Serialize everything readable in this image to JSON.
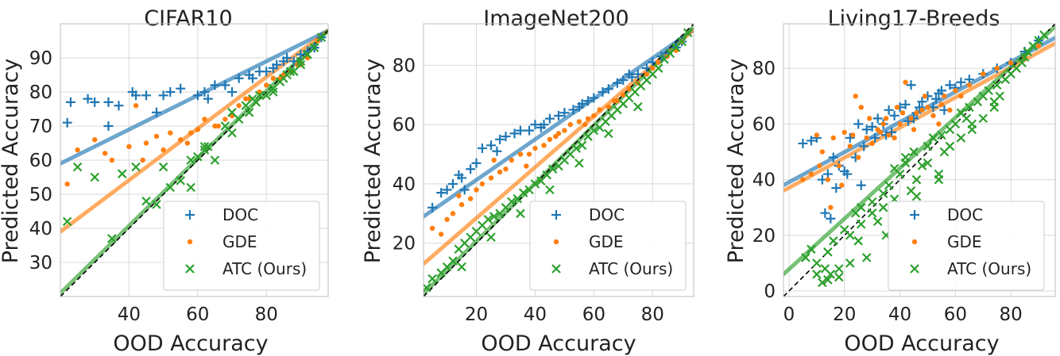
{
  "colors": {
    "DOC": "#1f77b4",
    "GDE": "#ff7f0e",
    "ATC (Ours)": "#2ca02c",
    "diagonal": "#000000"
  },
  "chart_data": [
    {
      "type": "scatter",
      "title": "CIFAR10",
      "xlabel": "OOD Accuracy",
      "ylabel": "Predicted Accuracy",
      "xlim": [
        20,
        98
      ],
      "ylim": [
        20,
        100
      ],
      "xticks": [
        40,
        60,
        80
      ],
      "yticks": [
        30,
        40,
        50,
        60,
        70,
        80,
        90
      ],
      "legend_position": "bottom-right",
      "legend": [
        "DOC",
        "GDE",
        "ATC (Ours)"
      ],
      "fit_lines": [
        {
          "name": "DOC",
          "x": [
            20,
            98
          ],
          "y": [
            59,
            98
          ]
        },
        {
          "name": "GDE",
          "x": [
            20,
            98
          ],
          "y": [
            39,
            98
          ]
        },
        {
          "name": "ATC (Ours)",
          "x": [
            20,
            98
          ],
          "y": [
            21,
            98
          ]
        }
      ],
      "series": [
        {
          "name": "DOC",
          "marker": "plus",
          "x": [
            22,
            23,
            28,
            30,
            34,
            37,
            41,
            42,
            45,
            50,
            52,
            55,
            60,
            62,
            65,
            68,
            72,
            75,
            78,
            80,
            83,
            85,
            88,
            90,
            92,
            94,
            96,
            34,
            48,
            63,
            70,
            76,
            82,
            86
          ],
          "y": [
            71,
            77,
            78,
            77,
            77,
            76,
            80,
            79,
            79,
            79,
            80,
            81,
            79,
            80,
            82,
            82,
            84,
            85,
            86,
            86,
            88,
            89,
            89,
            91,
            92,
            93,
            96,
            70,
            74,
            78,
            80,
            84,
            87,
            90
          ]
        },
        {
          "name": "GDE",
          "marker": "dot",
          "x": [
            22,
            25,
            30,
            35,
            40,
            42,
            45,
            48,
            50,
            52,
            55,
            58,
            60,
            62,
            65,
            68,
            70,
            72,
            75,
            78,
            80,
            82,
            85,
            87,
            90,
            92,
            95,
            33,
            44,
            57,
            66,
            74,
            84,
            89
          ],
          "y": [
            53,
            63,
            66,
            60,
            64,
            76,
            65,
            67,
            63,
            68,
            66,
            68,
            69,
            72,
            70,
            72,
            73,
            76,
            78,
            80,
            82,
            84,
            85,
            86,
            88,
            90,
            95,
            62,
            60,
            65,
            70,
            78,
            84,
            88
          ]
        },
        {
          "name": "ATC (Ours)",
          "marker": "x",
          "x": [
            22,
            25,
            30,
            35,
            38,
            42,
            45,
            48,
            50,
            52,
            55,
            58,
            60,
            62,
            63,
            65,
            68,
            70,
            72,
            74,
            75,
            77,
            78,
            80,
            82,
            84,
            85,
            87,
            88,
            90,
            92,
            94,
            96,
            58,
            62,
            70,
            76,
            82,
            86,
            90
          ],
          "y": [
            42,
            58,
            55,
            37,
            56,
            58,
            48,
            47,
            58,
            52,
            54,
            60,
            61,
            63,
            64,
            60,
            70,
            68,
            72,
            76,
            74,
            77,
            79,
            79,
            81,
            83,
            84,
            86,
            86,
            88,
            91,
            93,
            96,
            52,
            64,
            74,
            78,
            80,
            85,
            89
          ]
        }
      ]
    },
    {
      "type": "scatter",
      "title": "ImageNet200",
      "xlabel": "OOD Accuracy",
      "ylabel": "Predicted Accuracy",
      "xlim": [
        2,
        94
      ],
      "ylim": [
        2,
        94
      ],
      "xticks": [
        20,
        40,
        60,
        80
      ],
      "yticks": [
        20,
        40,
        60,
        80
      ],
      "legend_position": "bottom-right",
      "legend": [
        "DOC",
        "GDE",
        "ATC (Ours)"
      ],
      "fit_lines": [
        {
          "name": "DOC",
          "x": [
            2,
            94
          ],
          "y": [
            29,
            92
          ]
        },
        {
          "name": "GDE",
          "x": [
            2,
            94
          ],
          "y": [
            13,
            92
          ]
        },
        {
          "name": "ATC (Ours)",
          "x": [
            2,
            94
          ],
          "y": [
            3,
            93
          ]
        }
      ],
      "series": [
        {
          "name": "DOC",
          "marker": "plus",
          "x": [
            5,
            8,
            10,
            12,
            14,
            16,
            18,
            20,
            22,
            25,
            28,
            30,
            33,
            35,
            38,
            40,
            43,
            45,
            48,
            50,
            53,
            55,
            58,
            60,
            63,
            65,
            68,
            70,
            73,
            75,
            78,
            80,
            83,
            85,
            88,
            90,
            15,
            27,
            42,
            56,
            72
          ],
          "y": [
            32,
            37,
            38,
            40,
            43,
            38,
            45,
            47,
            52,
            53,
            55,
            56,
            57,
            58,
            58,
            60,
            60,
            62,
            63,
            64,
            65,
            66,
            68,
            69,
            71,
            72,
            74,
            75,
            76,
            77,
            79,
            81,
            83,
            84,
            86,
            88,
            42,
            51,
            59,
            67,
            77
          ]
        },
        {
          "name": "GDE",
          "marker": "dot",
          "x": [
            5,
            8,
            10,
            12,
            15,
            18,
            20,
            22,
            25,
            28,
            30,
            32,
            35,
            38,
            40,
            43,
            45,
            48,
            50,
            52,
            55,
            58,
            60,
            62,
            65,
            68,
            70,
            72,
            75,
            78,
            80,
            82,
            85,
            88,
            90,
            14,
            26,
            37,
            47,
            57,
            67
          ],
          "y": [
            25,
            23,
            28,
            30,
            33,
            35,
            38,
            40,
            42,
            44,
            45,
            48,
            50,
            50,
            52,
            53,
            55,
            57,
            58,
            60,
            61,
            62,
            63,
            65,
            66,
            68,
            70,
            72,
            74,
            77,
            79,
            81,
            83,
            85,
            88,
            36,
            48,
            46,
            56,
            60,
            68
          ]
        },
        {
          "name": "ATC (Ours)",
          "marker": "x",
          "x": [
            3,
            5,
            8,
            10,
            12,
            14,
            16,
            18,
            20,
            22,
            24,
            26,
            28,
            30,
            32,
            34,
            36,
            38,
            40,
            42,
            44,
            46,
            48,
            50,
            52,
            54,
            56,
            58,
            60,
            62,
            64,
            66,
            68,
            70,
            72,
            74,
            76,
            78,
            80,
            82,
            84,
            86,
            88,
            90,
            92,
            15,
            25,
            35,
            45,
            55,
            65,
            75
          ],
          "y": [
            5,
            8,
            10,
            12,
            14,
            18,
            20,
            22,
            24,
            26,
            28,
            29,
            30,
            32,
            34,
            35,
            37,
            38,
            40,
            41,
            43,
            45,
            46,
            48,
            50,
            52,
            53,
            56,
            58,
            59,
            61,
            63,
            65,
            67,
            69,
            71,
            73,
            75,
            77,
            79,
            82,
            84,
            86,
            88,
            91,
            12,
            22,
            30,
            38,
            47,
            57,
            66
          ]
        }
      ]
    },
    {
      "type": "scatter",
      "title": "Living17-Breeds",
      "xlabel": "OOD Accuracy",
      "ylabel": "Predicted Accuracy",
      "xlim": [
        -2,
        96
      ],
      "ylim": [
        -2,
        96
      ],
      "xticks": [
        0,
        20,
        40,
        60,
        80
      ],
      "yticks": [
        0,
        20,
        40,
        60,
        80
      ],
      "legend_position": "bottom-right",
      "legend": [
        "DOC",
        "GDE",
        "ATC (Ours)"
      ],
      "fit_lines": [
        {
          "name": "DOC",
          "x": [
            -2,
            96
          ],
          "y": [
            38,
            91
          ]
        },
        {
          "name": "GDE",
          "x": [
            -2,
            96
          ],
          "y": [
            36,
            89
          ]
        },
        {
          "name": "ATC (Ours)",
          "x": [
            -2,
            96
          ],
          "y": [
            6,
            95
          ]
        }
      ],
      "series": [
        {
          "name": "DOC",
          "marker": "plus",
          "x": [
            5,
            8,
            10,
            12,
            14,
            15,
            16,
            18,
            20,
            22,
            24,
            25,
            26,
            28,
            30,
            32,
            34,
            35,
            36,
            38,
            40,
            42,
            44,
            45,
            46,
            48,
            50,
            52,
            54,
            55,
            56,
            58,
            60,
            62,
            65,
            70,
            75,
            80,
            85,
            90,
            13,
            17,
            21,
            27,
            31,
            37,
            43,
            47,
            53
          ],
          "y": [
            53,
            54,
            55,
            40,
            42,
            26,
            48,
            45,
            43,
            55,
            48,
            60,
            38,
            58,
            59,
            62,
            60,
            56,
            65,
            63,
            66,
            67,
            74,
            62,
            64,
            68,
            70,
            66,
            71,
            72,
            65,
            74,
            73,
            75,
            76,
            78,
            80,
            82,
            86,
            90,
            28,
            37,
            42,
            52,
            55,
            57,
            61,
            66,
            69
          ]
        },
        {
          "name": "GDE",
          "marker": "dot",
          "x": [
            5,
            8,
            10,
            12,
            14,
            15,
            16,
            18,
            20,
            22,
            24,
            25,
            26,
            28,
            30,
            32,
            34,
            35,
            36,
            38,
            40,
            42,
            44,
            45,
            46,
            48,
            50,
            52,
            54,
            55,
            56,
            58,
            60,
            62,
            65,
            70,
            75,
            80,
            85,
            90,
            11,
            19,
            23,
            29,
            33,
            39,
            41,
            49
          ],
          "y": [
            40,
            42,
            56,
            50,
            40,
            30,
            55,
            45,
            57,
            52,
            70,
            48,
            66,
            55,
            53,
            58,
            60,
            62,
            56,
            55,
            60,
            75,
            62,
            58,
            64,
            65,
            66,
            63,
            60,
            67,
            70,
            65,
            72,
            70,
            74,
            78,
            80,
            82,
            84,
            88,
            45,
            38,
            56,
            62,
            57,
            66,
            64,
            70
          ]
        },
        {
          "name": "ATC (Ours)",
          "marker": "x",
          "x": [
            6,
            8,
            10,
            12,
            13,
            14,
            15,
            16,
            18,
            20,
            22,
            24,
            25,
            26,
            28,
            30,
            32,
            34,
            35,
            36,
            38,
            40,
            42,
            44,
            45,
            46,
            48,
            50,
            52,
            54,
            55,
            56,
            58,
            60,
            62,
            64,
            65,
            66,
            68,
            70,
            72,
            74,
            75,
            76,
            78,
            80,
            82,
            84,
            85,
            86,
            88,
            90,
            92,
            10,
            14,
            18,
            22,
            26,
            30,
            34,
            38,
            42,
            46,
            50,
            54,
            58,
            62,
            66,
            70,
            74
          ],
          "y": [
            12,
            15,
            10,
            3,
            8,
            14,
            6,
            18,
            5,
            22,
            10,
            28,
            18,
            30,
            12,
            32,
            25,
            35,
            20,
            38,
            33,
            42,
            48,
            36,
            50,
            40,
            45,
            52,
            55,
            40,
            56,
            50,
            58,
            60,
            55,
            62,
            66,
            60,
            68,
            70,
            72,
            66,
            74,
            70,
            76,
            78,
            80,
            82,
            84,
            86,
            88,
            90,
            92,
            6,
            4,
            8,
            20,
            24,
            28,
            30,
            44,
            46,
            34,
            46,
            42,
            52,
            64,
            58,
            62,
            68
          ]
        }
      ]
    }
  ]
}
